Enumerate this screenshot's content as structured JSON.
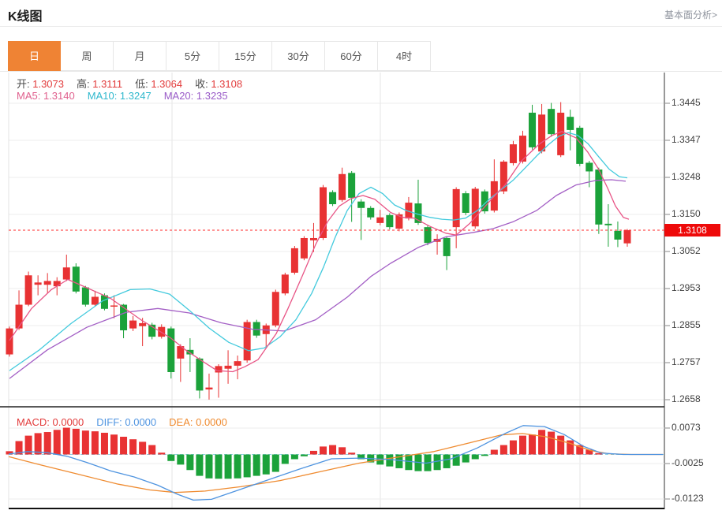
{
  "header": {
    "title": "K线图",
    "link": "基本面分析>"
  },
  "tabs": {
    "items": [
      {
        "label": "日",
        "active": true
      },
      {
        "label": "周",
        "active": false
      },
      {
        "label": "月",
        "active": false
      },
      {
        "label": "5分",
        "active": false
      },
      {
        "label": "15分",
        "active": false
      },
      {
        "label": "30分",
        "active": false
      },
      {
        "label": "60分",
        "active": false
      },
      {
        "label": "4时",
        "active": false
      }
    ]
  },
  "quote": {
    "fields": [
      {
        "label": "开:",
        "value": "1.3073"
      },
      {
        "label": "高:",
        "value": "1.3111"
      },
      {
        "label": "低:",
        "value": "1.3064"
      },
      {
        "label": "收:",
        "value": "1.3108"
      }
    ]
  },
  "ma_info": {
    "items": [
      {
        "label": "MA5:",
        "value": "1.3140",
        "color": "#e0608e"
      },
      {
        "label": "MA10:",
        "value": "1.3247",
        "color": "#2fb8cd"
      },
      {
        "label": "MA20:",
        "value": "1.3235",
        "color": "#9a5cc8"
      }
    ]
  },
  "macd_info": {
    "items": [
      {
        "label": "MACD:",
        "value": "0.0000",
        "color": "#e23b3b"
      },
      {
        "label": "DIFF:",
        "value": "0.0000",
        "color": "#4f94e0"
      },
      {
        "label": "DEA:",
        "value": "0.0000",
        "color": "#ef8b30"
      }
    ]
  },
  "colors": {
    "candle_up": "#e83233",
    "candle_down": "#1ba23a",
    "ma5_line": "#e85586",
    "ma10_line": "#43cadd",
    "ma20_line": "#a35fc5",
    "diff_line": "#4f94e0",
    "dea_line": "#ef8b30",
    "current_price_line": "#ff2828",
    "badge_bg": "#ee0a0a",
    "grid": "#ededed",
    "vgrid": "#e5e5e5",
    "axis_line": "#555555",
    "zero_dash": "#8fd3e8",
    "tab_active": "#ef8334"
  },
  "chart_data": {
    "type": "candlestick",
    "title": "K线图 daily candlestick with MA5/MA10/MA20 and MACD",
    "current_price": 1.3108,
    "current_price_label": "1.3108",
    "y_axis_labels": [
      "1.3445",
      "1.3347",
      "1.3248",
      "1.3150",
      "1.3052",
      "1.2953",
      "1.2855",
      "1.2757",
      "1.2658"
    ],
    "macd_axis_labels": [
      "0.0073",
      "-0.0025",
      "-0.0123"
    ],
    "ohlc_legend": {
      "open": 1.3073,
      "high": 1.3111,
      "low": 1.3064,
      "close": 1.3108
    },
    "ma_values": {
      "ma5": 1.314,
      "ma10": 1.3247,
      "ma20": 1.3235
    },
    "candles": [
      [
        1.2778,
        1.2852,
        1.2772,
        1.2847
      ],
      [
        1.2847,
        1.2948,
        1.2843,
        1.291
      ],
      [
        1.291,
        1.2998,
        1.2906,
        1.2988
      ],
      [
        1.2963,
        1.2988,
        1.2935,
        1.2969
      ],
      [
        1.2963,
        1.2994,
        1.2941,
        1.2973
      ],
      [
        1.2959,
        1.2983,
        1.2935,
        1.2973
      ],
      [
        1.2977,
        1.3043,
        1.2973,
        1.3009
      ],
      [
        1.3011,
        1.302,
        1.294,
        1.2945
      ],
      [
        1.2956,
        1.296,
        1.2905,
        1.291
      ],
      [
        1.291,
        1.2947,
        1.2905,
        1.2931
      ],
      [
        1.2935,
        1.294,
        1.2895,
        1.2899
      ],
      [
        1.2905,
        1.2935,
        1.2874,
        1.2908
      ],
      [
        1.291,
        1.2912,
        1.2821,
        1.2842
      ],
      [
        1.2847,
        1.288,
        1.284,
        1.2868
      ],
      [
        1.2853,
        1.2875,
        1.28,
        1.2861
      ],
      [
        1.2857,
        1.2862,
        1.2818,
        1.2825
      ],
      [
        1.2825,
        1.2858,
        1.282,
        1.2851
      ],
      [
        1.2847,
        1.2852,
        1.2714,
        1.2731
      ],
      [
        1.2767,
        1.2805,
        1.2705,
        1.28
      ],
      [
        1.279,
        1.2821,
        1.2731,
        1.2778
      ],
      [
        1.2767,
        1.277,
        1.2661,
        1.2682
      ],
      [
        1.2685,
        1.2727,
        1.2658,
        1.269
      ],
      [
        1.273,
        1.2752,
        1.2663,
        1.2747
      ],
      [
        1.274,
        1.2789,
        1.27,
        1.2748
      ],
      [
        1.2748,
        1.2775,
        1.2712,
        1.276
      ],
      [
        1.2762,
        1.287,
        1.2756,
        1.2864
      ],
      [
        1.2864,
        1.287,
        1.2822,
        1.2828
      ],
      [
        1.2832,
        1.286,
        1.2798,
        1.2855
      ],
      [
        1.2855,
        1.295,
        1.285,
        1.2944
      ],
      [
        1.294,
        1.2995,
        1.2935,
        1.299
      ],
      [
        1.2995,
        1.3066,
        1.299,
        1.306
      ],
      [
        1.3033,
        1.3092,
        1.3028,
        1.3087
      ],
      [
        1.3081,
        1.3127,
        1.305,
        1.3087
      ],
      [
        1.3087,
        1.3228,
        1.3082,
        1.3222
      ],
      [
        1.3209,
        1.3214,
        1.3172,
        1.3177
      ],
      [
        1.3188,
        1.3274,
        1.3183,
        1.3257
      ],
      [
        1.326,
        1.3265,
        1.313,
        1.3194
      ],
      [
        1.3184,
        1.319,
        1.3082,
        1.3167
      ],
      [
        1.3167,
        1.3172,
        1.3136,
        1.3142
      ],
      [
        1.3127,
        1.3162,
        1.3121,
        1.3142
      ],
      [
        1.3148,
        1.3153,
        1.311,
        1.3116
      ],
      [
        1.3112,
        1.3155,
        1.3105,
        1.315
      ],
      [
        1.3139,
        1.3196,
        1.3134,
        1.3181
      ],
      [
        1.3179,
        1.3242,
        1.3122,
        1.3127
      ],
      [
        1.3116,
        1.3121,
        1.3068,
        1.3074
      ],
      [
        1.3077,
        1.3097,
        1.3043,
        1.3085
      ],
      [
        1.3087,
        1.3092,
        1.3002,
        1.3039
      ],
      [
        1.3116,
        1.3222,
        1.306,
        1.3217
      ],
      [
        1.3206,
        1.3212,
        1.3148,
        1.3154
      ],
      [
        1.3118,
        1.3223,
        1.3112,
        1.3218
      ],
      [
        1.3211,
        1.3216,
        1.3152,
        1.3158
      ],
      [
        1.316,
        1.3296,
        1.3155,
        1.3238
      ],
      [
        1.3211,
        1.3294,
        1.3204,
        1.329
      ],
      [
        1.3286,
        1.3345,
        1.328,
        1.3336
      ],
      [
        1.329,
        1.3372,
        1.3285,
        1.3359
      ],
      [
        1.342,
        1.3441,
        1.3322,
        1.3328
      ],
      [
        1.3317,
        1.3443,
        1.3312,
        1.3415
      ],
      [
        1.343,
        1.3446,
        1.3356,
        1.3363
      ],
      [
        1.3307,
        1.3448,
        1.3302,
        1.342
      ],
      [
        1.3409,
        1.3428,
        1.332,
        1.3374
      ],
      [
        1.338,
        1.3385,
        1.3278,
        1.3284
      ],
      [
        1.3287,
        1.3292,
        1.3222,
        1.3264
      ],
      [
        1.3269,
        1.3274,
        1.3098,
        1.3123
      ],
      [
        1.3125,
        1.3177,
        1.3064,
        1.3121
      ],
      [
        1.3106,
        1.3131,
        1.3063,
        1.3083
      ],
      [
        1.3073,
        1.3111,
        1.3064,
        1.3108
      ]
    ],
    "ma5": [
      [
        12,
        1.2815
      ],
      [
        40,
        1.29
      ],
      [
        65,
        1.295
      ],
      [
        86,
        1.2977
      ],
      [
        110,
        1.2955
      ],
      [
        140,
        1.2927
      ],
      [
        180,
        1.2868
      ],
      [
        216,
        1.2822
      ],
      [
        235,
        1.279
      ],
      [
        255,
        1.2762
      ],
      [
        275,
        1.2735
      ],
      [
        295,
        1.2732
      ],
      [
        310,
        1.2745
      ],
      [
        327,
        1.2764
      ],
      [
        350,
        1.2833
      ],
      [
        365,
        1.29
      ],
      [
        383,
        1.2986
      ],
      [
        400,
        1.307
      ],
      [
        415,
        1.313
      ],
      [
        430,
        1.3172
      ],
      [
        445,
        1.3192
      ],
      [
        460,
        1.32
      ],
      [
        475,
        1.319
      ],
      [
        495,
        1.3155
      ],
      [
        510,
        1.3142
      ],
      [
        525,
        1.314
      ],
      [
        545,
        1.3118
      ],
      [
        565,
        1.31
      ],
      [
        578,
        1.3095
      ],
      [
        595,
        1.3125
      ],
      [
        610,
        1.316
      ],
      [
        625,
        1.3195
      ],
      [
        640,
        1.3228
      ],
      [
        660,
        1.329
      ],
      [
        683,
        1.3336
      ],
      [
        700,
        1.336
      ],
      [
        712,
        1.337
      ],
      [
        730,
        1.3353
      ],
      [
        745,
        1.3315
      ],
      [
        758,
        1.3272
      ],
      [
        770,
        1.322
      ],
      [
        780,
        1.3172
      ],
      [
        790,
        1.3142
      ],
      [
        797,
        1.3137
      ]
    ],
    "ma10": [
      [
        12,
        1.2735
      ],
      [
        50,
        1.279
      ],
      [
        90,
        1.286
      ],
      [
        130,
        1.292
      ],
      [
        165,
        1.295
      ],
      [
        190,
        1.2952
      ],
      [
        215,
        1.2938
      ],
      [
        240,
        1.2895
      ],
      [
        265,
        1.2848
      ],
      [
        290,
        1.281
      ],
      [
        315,
        1.2788
      ],
      [
        335,
        1.2795
      ],
      [
        355,
        1.2825
      ],
      [
        375,
        1.287
      ],
      [
        395,
        1.294
      ],
      [
        410,
        1.301
      ],
      [
        425,
        1.309
      ],
      [
        440,
        1.316
      ],
      [
        455,
        1.3205
      ],
      [
        470,
        1.3222
      ],
      [
        485,
        1.3205
      ],
      [
        500,
        1.3175
      ],
      [
        515,
        1.316
      ],
      [
        530,
        1.315
      ],
      [
        545,
        1.3142
      ],
      [
        560,
        1.3137
      ],
      [
        575,
        1.3135
      ],
      [
        590,
        1.314
      ],
      [
        605,
        1.316
      ],
      [
        620,
        1.319
      ],
      [
        635,
        1.3215
      ],
      [
        650,
        1.324
      ],
      [
        665,
        1.3272
      ],
      [
        680,
        1.3305
      ],
      [
        695,
        1.3335
      ],
      [
        708,
        1.3357
      ],
      [
        720,
        1.3367
      ],
      [
        732,
        1.336
      ],
      [
        745,
        1.3338
      ],
      [
        758,
        1.3305
      ],
      [
        772,
        1.327
      ],
      [
        785,
        1.325
      ],
      [
        795,
        1.3247
      ]
    ],
    "ma20": [
      [
        12,
        1.2714
      ],
      [
        60,
        1.279
      ],
      [
        110,
        1.285
      ],
      [
        160,
        1.289
      ],
      [
        200,
        1.29
      ],
      [
        240,
        1.2888
      ],
      [
        280,
        1.2862
      ],
      [
        320,
        1.2845
      ],
      [
        360,
        1.284
      ],
      [
        400,
        1.287
      ],
      [
        440,
        1.293
      ],
      [
        470,
        1.2985
      ],
      [
        495,
        1.302
      ],
      [
        530,
        1.3062
      ],
      [
        565,
        1.309
      ],
      [
        600,
        1.3102
      ],
      [
        625,
        1.3112
      ],
      [
        650,
        1.313
      ],
      [
        680,
        1.316
      ],
      [
        705,
        1.32
      ],
      [
        730,
        1.3228
      ],
      [
        755,
        1.324
      ],
      [
        775,
        1.3242
      ],
      [
        793,
        1.3238
      ]
    ],
    "macd_hist": [
      0.0009,
      0.0037,
      0.0052,
      0.0059,
      0.0062,
      0.0068,
      0.0074,
      0.0071,
      0.0066,
      0.0064,
      0.006,
      0.0055,
      0.0049,
      0.0042,
      0.0035,
      0.0026,
      0.0005,
      -0.0018,
      -0.0028,
      -0.0043,
      -0.0059,
      -0.0066,
      -0.0067,
      -0.0067,
      -0.0066,
      -0.0063,
      -0.0059,
      -0.0055,
      -0.0048,
      -0.0026,
      -0.0013,
      -0.0005,
      0.001,
      0.0022,
      0.0026,
      0.002,
      0.0005,
      -0.0013,
      -0.0022,
      -0.0028,
      -0.0033,
      -0.0038,
      -0.0043,
      -0.0046,
      -0.0046,
      -0.0043,
      -0.0038,
      -0.0031,
      -0.0022,
      -0.0013,
      -0.0004,
      0.0013,
      0.0026,
      0.0039,
      0.0052,
      0.0055,
      0.0068,
      0.0063,
      0.0052,
      0.0039,
      0.0026,
      0.0013,
      0.0004,
      0,
      0,
      0
    ],
    "diff_line": [
      [
        11,
        0.0001
      ],
      [
        35,
        0.0008
      ],
      [
        60,
        0.0005
      ],
      [
        85,
        -0.0005
      ],
      [
        110,
        -0.0022
      ],
      [
        140,
        -0.0045
      ],
      [
        170,
        -0.0062
      ],
      [
        200,
        -0.0085
      ],
      [
        225,
        -0.011
      ],
      [
        245,
        -0.0126
      ],
      [
        268,
        -0.0124
      ],
      [
        300,
        -0.01
      ],
      [
        340,
        -0.007
      ],
      [
        380,
        -0.004
      ],
      [
        420,
        -0.0012
      ],
      [
        455,
        -0.001
      ],
      [
        495,
        -0.0014
      ],
      [
        540,
        -0.0024
      ],
      [
        572,
        -0.0012
      ],
      [
        605,
        0.0018
      ],
      [
        640,
        0.0058
      ],
      [
        663,
        0.008
      ],
      [
        690,
        0.0077
      ],
      [
        715,
        0.0055
      ],
      [
        740,
        0.0022
      ],
      [
        762,
        0.0004
      ],
      [
        790,
        0.0
      ],
      [
        840,
        0.0
      ]
    ],
    "dea_line": [
      [
        11,
        -0.0006
      ],
      [
        50,
        -0.0028
      ],
      [
        100,
        -0.0055
      ],
      [
        150,
        -0.0082
      ],
      [
        190,
        -0.0098
      ],
      [
        222,
        -0.0105
      ],
      [
        260,
        -0.0101
      ],
      [
        305,
        -0.0089
      ],
      [
        355,
        -0.0072
      ],
      [
        405,
        -0.0048
      ],
      [
        455,
        -0.0024
      ],
      [
        505,
        -0.0007
      ],
      [
        550,
        0.0008
      ],
      [
        595,
        0.0032
      ],
      [
        635,
        0.0054
      ],
      [
        662,
        0.0058
      ],
      [
        692,
        0.0049
      ],
      [
        722,
        0.0031
      ],
      [
        748,
        0.0011
      ],
      [
        772,
        0.0002
      ],
      [
        800,
        0.0
      ],
      [
        840,
        0.0
      ]
    ],
    "layout_hints": {
      "grid": true,
      "price_axis": "right",
      "panes": [
        "candles",
        "macd"
      ]
    }
  }
}
